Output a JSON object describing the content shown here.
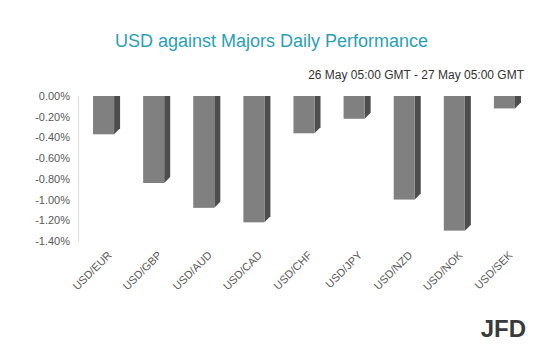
{
  "chart_data": {
    "type": "bar",
    "title": "USD against Majors Daily Performance",
    "subtitle": "26 May 05:00 GMT - 27 May 05:00 GMT",
    "categories": [
      "USD/EUR",
      "USD/GBP",
      "USD/AUD",
      "USD/CAD",
      "USD/CHF",
      "USD/JPY",
      "USD/NZD",
      "USD/NOK",
      "USD/SEK"
    ],
    "values": [
      -0.37,
      -0.84,
      -1.08,
      -1.22,
      -0.36,
      -0.22,
      -1.0,
      -1.3,
      -0.12
    ],
    "color": "#808080",
    "ylim": [
      -1.4,
      0
    ],
    "yticks": [
      {
        "value": 0,
        "label": "0.00%"
      },
      {
        "value": -0.2,
        "label": "-0.20%"
      },
      {
        "value": -0.4,
        "label": "-0.40%"
      },
      {
        "value": -0.6,
        "label": "-0.60%"
      },
      {
        "value": -0.8,
        "label": "-0.80%"
      },
      {
        "value": -1.0,
        "label": "-1.00%"
      },
      {
        "value": -1.2,
        "label": "-1.20%"
      },
      {
        "value": -1.4,
        "label": "-1.40%"
      }
    ],
    "grid": false,
    "annotations": [
      "JFD"
    ]
  }
}
